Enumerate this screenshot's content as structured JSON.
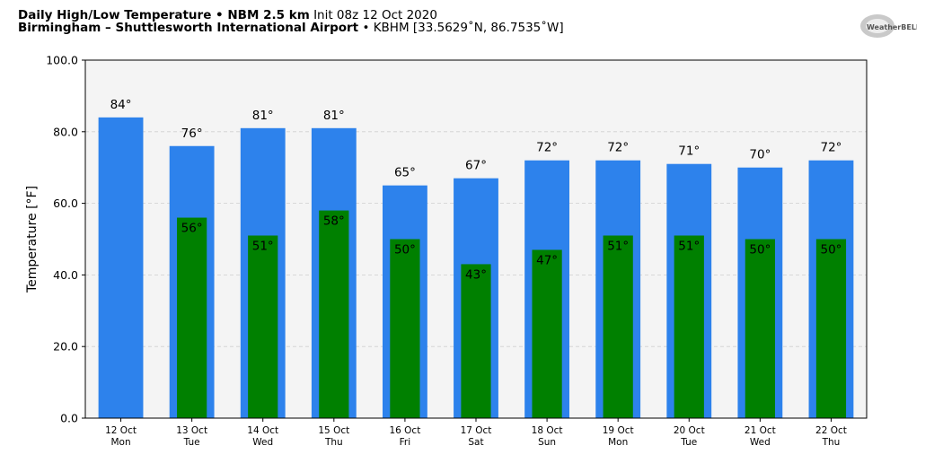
{
  "header": {
    "title_bold": "Daily High/Low Temperature • NBM 2.5 km",
    "title_init": "Init 08z 12 Oct 2020",
    "location_bold": "Birmingham – Shuttlesworth International Airport",
    "location_detail": "• KBHM [33.5629˚N, 86.7535˚W]"
  },
  "logo": {
    "text": "WeatherBELL"
  },
  "chart_data": {
    "type": "bar",
    "ylabel": "Temperature [°F]",
    "ylim": [
      0,
      100
    ],
    "yticks": [
      "0.0",
      "20.0",
      "40.0",
      "60.0",
      "80.0",
      "100.0"
    ],
    "categories": [
      {
        "date": "12 Oct",
        "day": "Mon"
      },
      {
        "date": "13 Oct",
        "day": "Tue"
      },
      {
        "date": "14 Oct",
        "day": "Wed"
      },
      {
        "date": "15 Oct",
        "day": "Thu"
      },
      {
        "date": "16 Oct",
        "day": "Fri"
      },
      {
        "date": "17 Oct",
        "day": "Sat"
      },
      {
        "date": "18 Oct",
        "day": "Sun"
      },
      {
        "date": "19 Oct",
        "day": "Mon"
      },
      {
        "date": "20 Oct",
        "day": "Tue"
      },
      {
        "date": "21 Oct",
        "day": "Wed"
      },
      {
        "date": "22 Oct",
        "day": "Thu"
      }
    ],
    "series": [
      {
        "values": [
          84,
          76,
          81,
          81,
          65,
          67,
          72,
          72,
          71,
          70,
          72
        ],
        "labels": [
          "84°",
          "76°",
          "81°",
          "81°",
          "65°",
          "67°",
          "72°",
          "72°",
          "71°",
          "70°",
          "72°"
        ],
        "color": "#2d82ec"
      },
      {
        "values": [
          null,
          56,
          51,
          58,
          50,
          43,
          47,
          51,
          51,
          50,
          50
        ],
        "labels": [
          "",
          "56°",
          "51°",
          "58°",
          "50°",
          "43°",
          "47°",
          "51°",
          "51°",
          "50°",
          "50°"
        ],
        "color": "#008000"
      }
    ],
    "plot_background": "#f4f4f4",
    "grid": true
  }
}
